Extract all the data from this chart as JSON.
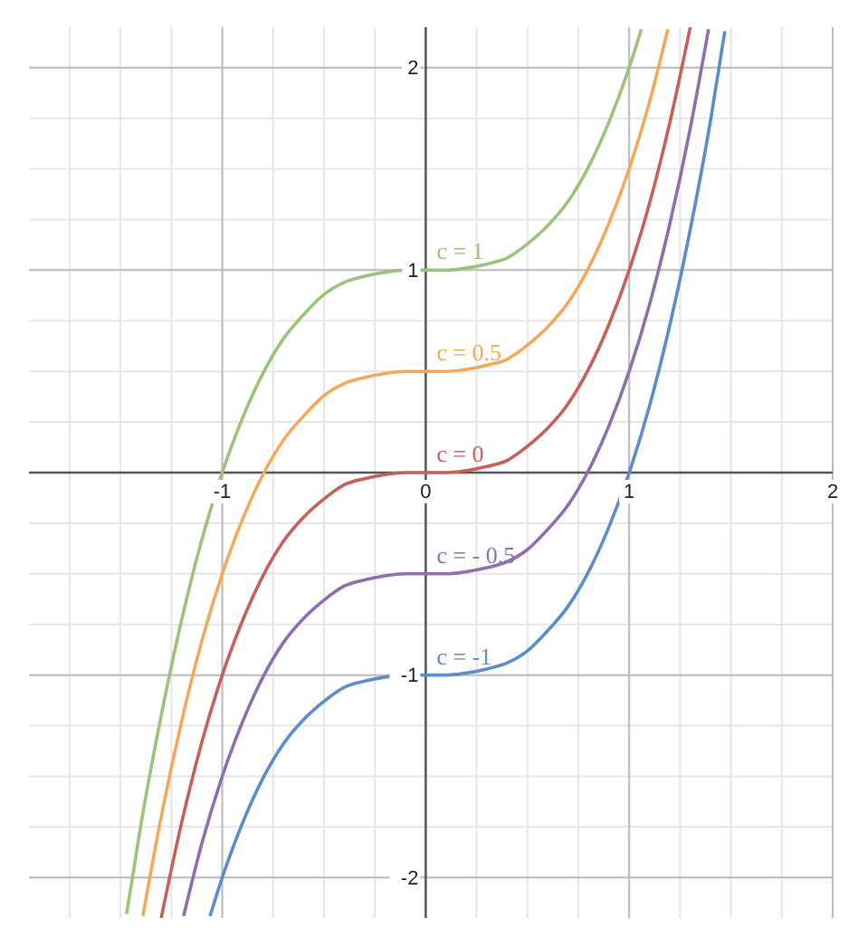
{
  "chart_data": {
    "type": "line",
    "xlim": [
      -1.95,
      2.0
    ],
    "ylim": [
      -2.2,
      2.2
    ],
    "xticks": [
      -1,
      0,
      1,
      2
    ],
    "yticks": [
      -2,
      -1,
      1,
      2
    ],
    "grid": true,
    "series": [
      {
        "name": "c = 1",
        "color": "#9bc47a",
        "x": [
          -1.47,
          -1.4,
          -1.3,
          -1.2,
          -1.1,
          -1,
          -0.9,
          -0.8,
          -0.7,
          -0.6,
          -0.5,
          -0.4,
          -0.3,
          -0.2,
          -0.1,
          0,
          0.1,
          0.2,
          0.3,
          0.4,
          0.5,
          0.6,
          0.7,
          0.8,
          0.9,
          1,
          1.06
        ],
        "values": [
          -2.18,
          -1.74,
          -1.2,
          -0.73,
          -0.33,
          0,
          0.27,
          0.49,
          0.66,
          0.78,
          0.88,
          0.94,
          0.97,
          0.99,
          1,
          1,
          1,
          1.01,
          1.03,
          1.06,
          1.13,
          1.22,
          1.34,
          1.51,
          1.73,
          2,
          2.19
        ]
      },
      {
        "name": "c = 0.5",
        "color": "#f4a95a",
        "x": [
          -1.39,
          -1.3,
          -1.2,
          -1.1,
          -1,
          -0.9,
          -0.8,
          -0.7,
          -0.6,
          -0.5,
          -0.4,
          -0.3,
          -0.2,
          -0.1,
          0,
          0.1,
          0.2,
          0.3,
          0.4,
          0.5,
          0.6,
          0.7,
          0.8,
          0.9,
          1,
          1.1,
          1.19
        ],
        "values": [
          -2.19,
          -1.7,
          -1.23,
          -0.83,
          -0.5,
          -0.23,
          -0.01,
          0.16,
          0.28,
          0.38,
          0.44,
          0.47,
          0.49,
          0.5,
          0.5,
          0.5,
          0.51,
          0.53,
          0.56,
          0.63,
          0.72,
          0.84,
          1.01,
          1.23,
          1.5,
          1.83,
          2.19
        ]
      },
      {
        "name": "c = 0",
        "color": "#c5605a",
        "x": [
          -1.3,
          -1.2,
          -1.1,
          -1,
          -0.9,
          -0.8,
          -0.7,
          -0.6,
          -0.5,
          -0.4,
          -0.3,
          -0.2,
          -0.1,
          0,
          0.1,
          0.2,
          0.3,
          0.4,
          0.5,
          0.6,
          0.7,
          0.8,
          0.9,
          1,
          1.1,
          1.2,
          1.3
        ],
        "values": [
          -2.2,
          -1.73,
          -1.33,
          -1,
          -0.73,
          -0.51,
          -0.34,
          -0.22,
          -0.13,
          -0.06,
          -0.03,
          -0.01,
          0,
          0,
          0,
          0.01,
          0.03,
          0.06,
          0.13,
          0.22,
          0.34,
          0.51,
          0.73,
          1,
          1.33,
          1.73,
          2.2
        ]
      },
      {
        "name": "c = - 0.5",
        "color": "#8e6fae",
        "x": [
          -1.19,
          -1.1,
          -1,
          -0.9,
          -0.8,
          -0.7,
          -0.6,
          -0.5,
          -0.4,
          -0.3,
          -0.2,
          -0.1,
          0,
          0.1,
          0.2,
          0.3,
          0.4,
          0.5,
          0.6,
          0.7,
          0.8,
          0.9,
          1,
          1.1,
          1.2,
          1.3,
          1.39
        ],
        "values": [
          -2.19,
          -1.83,
          -1.5,
          -1.23,
          -1.01,
          -0.84,
          -0.72,
          -0.63,
          -0.56,
          -0.53,
          -0.51,
          -0.5,
          -0.5,
          -0.5,
          -0.49,
          -0.47,
          -0.44,
          -0.38,
          -0.28,
          -0.16,
          0.01,
          0.23,
          0.5,
          0.83,
          1.23,
          1.7,
          2.19
        ]
      },
      {
        "name": "c = -1",
        "color": "#5b8ec9",
        "x": [
          -1.06,
          -1,
          -0.9,
          -0.8,
          -0.7,
          -0.6,
          -0.5,
          -0.4,
          -0.3,
          -0.2,
          -0.1,
          0,
          0.1,
          0.2,
          0.3,
          0.4,
          0.5,
          0.6,
          0.7,
          0.8,
          0.9,
          1,
          1.1,
          1.2,
          1.3,
          1.4,
          1.47
        ],
        "values": [
          -2.19,
          -2,
          -1.73,
          -1.51,
          -1.34,
          -1.22,
          -1.13,
          -1.06,
          -1.03,
          -1.01,
          -1,
          -1,
          -1,
          -0.99,
          -0.97,
          -0.94,
          -0.88,
          -0.78,
          -0.66,
          -0.49,
          -0.27,
          0,
          0.33,
          0.73,
          1.2,
          1.74,
          2.18
        ]
      }
    ]
  }
}
